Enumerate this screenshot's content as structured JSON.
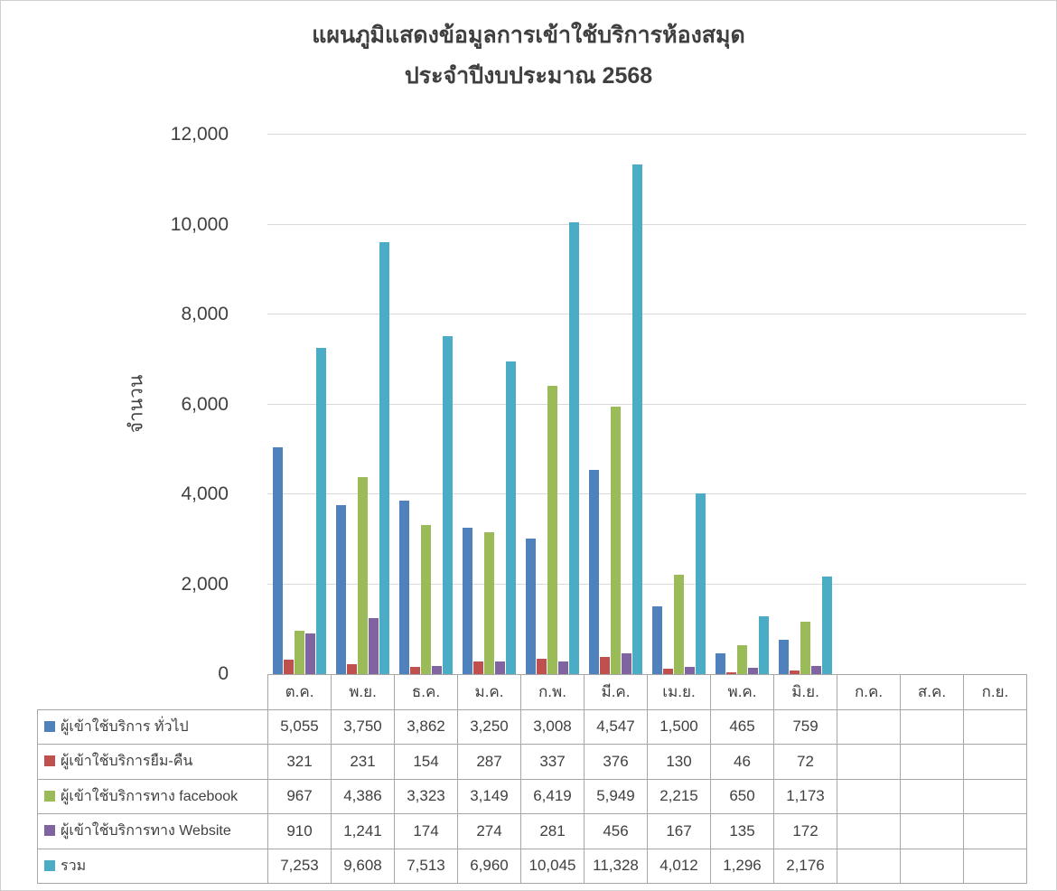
{
  "title": {
    "line1": "แผนภูมิแสดงข้อมูลการเข้าใช้บริการห้องสมุด",
    "line2": "ประจำปีงบประมาณ 2568"
  },
  "chart_data": {
    "type": "bar",
    "title": "แผนภูมิแสดงข้อมูลการเข้าใช้บริการห้องสมุด ประจำปีงบประมาณ 2568",
    "xlabel": "",
    "ylabel": "จำนวน",
    "ylim": [
      0,
      12000
    ],
    "ytick_interval": 2000,
    "ytick_labels": [
      "0",
      "2,000",
      "4,000",
      "6,000",
      "8,000",
      "10,000",
      "12,000"
    ],
    "grid": true,
    "legend_position": "table-left",
    "categories": [
      "ต.ค.",
      "พ.ย.",
      "ธ.ค.",
      "ม.ค.",
      "ก.พ.",
      "มี.ค.",
      "เม.ย.",
      "พ.ค.",
      "มิ.ย.",
      "ก.ค.",
      "ส.ค.",
      "ก.ย."
    ],
    "series": [
      {
        "name": "ผู้เข้าใช้บริการ ทั่วไป",
        "color": "#4F81BD",
        "values": [
          5055,
          3750,
          3862,
          3250,
          3008,
          4547,
          1500,
          465,
          759,
          null,
          null,
          null
        ]
      },
      {
        "name": "ผู้เข้าใช้บริการยืม-คืน",
        "color": "#C0504D",
        "values": [
          321,
          231,
          154,
          287,
          337,
          376,
          130,
          46,
          72,
          null,
          null,
          null
        ]
      },
      {
        "name": "ผู้เข้าใช้บริการทาง facebook",
        "color": "#9BBB59",
        "values": [
          967,
          4386,
          3323,
          3149,
          6419,
          5949,
          2215,
          650,
          1173,
          null,
          null,
          null
        ]
      },
      {
        "name": "ผู้เข้าใช้บริการทาง Website",
        "color": "#8064A2",
        "values": [
          910,
          1241,
          174,
          274,
          281,
          456,
          167,
          135,
          172,
          null,
          null,
          null
        ]
      },
      {
        "name": "รวม",
        "color": "#4BACC6",
        "values": [
          7253,
          9608,
          7513,
          6960,
          10045,
          11328,
          4012,
          1296,
          2176,
          null,
          null,
          null
        ]
      }
    ]
  }
}
